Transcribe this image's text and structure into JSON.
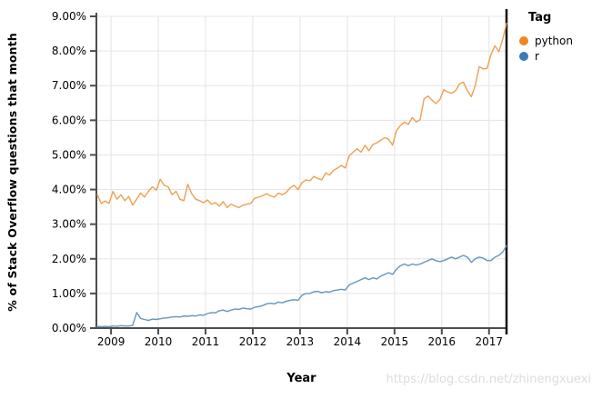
{
  "chart_data": {
    "type": "line",
    "title": "",
    "xlabel": "Year",
    "ylabel": "% of Stack Overflow questions that month",
    "legend": {
      "title": "Tag",
      "position": "right-top"
    },
    "grid": true,
    "xlim": [
      2008.69,
      2017.37
    ],
    "ylim": [
      0,
      9
    ],
    "x_ticks": [
      2009,
      2010,
      2011,
      2012,
      2013,
      2014,
      2015,
      2016,
      2017
    ],
    "y_tick_labels": [
      "0.00%",
      "1.00%",
      "2.00%",
      "3.00%",
      "4.00%",
      "5.00%",
      "6.00%",
      "7.00%",
      "8.00%",
      "9.00%"
    ],
    "x_start_month": "2008-09",
    "x_step": "1 month",
    "series": [
      {
        "name": "python",
        "dot_color": "#f28522",
        "line_color": "#efa051",
        "values": [
          3.85,
          3.6,
          3.67,
          3.6,
          3.95,
          3.72,
          3.85,
          3.68,
          3.8,
          3.55,
          3.72,
          3.9,
          3.78,
          3.95,
          4.08,
          3.98,
          4.3,
          4.12,
          4.08,
          3.85,
          3.95,
          3.72,
          3.68,
          4.15,
          3.88,
          3.72,
          3.68,
          3.62,
          3.7,
          3.58,
          3.62,
          3.52,
          3.65,
          3.48,
          3.58,
          3.52,
          3.48,
          3.55,
          3.58,
          3.6,
          3.75,
          3.78,
          3.82,
          3.88,
          3.82,
          3.78,
          3.9,
          3.85,
          3.92,
          4.05,
          4.12,
          4.0,
          4.2,
          4.28,
          4.25,
          4.38,
          4.32,
          4.28,
          4.48,
          4.42,
          4.55,
          4.62,
          4.7,
          4.62,
          4.98,
          5.08,
          5.18,
          5.08,
          5.28,
          5.12,
          5.3,
          5.35,
          5.42,
          5.5,
          5.45,
          5.28,
          5.7,
          5.85,
          5.95,
          5.88,
          6.08,
          5.95,
          6.02,
          6.62,
          6.7,
          6.58,
          6.48,
          6.6,
          6.88,
          6.82,
          6.78,
          6.85,
          7.05,
          7.1,
          6.85,
          6.68,
          7.0,
          7.55,
          7.48,
          7.5,
          7.9,
          8.15,
          7.98,
          8.35,
          8.8
        ]
      },
      {
        "name": "r",
        "dot_color": "#3b7cb8",
        "line_color": "#6596c0",
        "values": [
          0.05,
          0.04,
          0.05,
          0.04,
          0.06,
          0.05,
          0.07,
          0.06,
          0.06,
          0.08,
          0.45,
          0.28,
          0.25,
          0.22,
          0.26,
          0.25,
          0.27,
          0.29,
          0.3,
          0.32,
          0.33,
          0.32,
          0.35,
          0.34,
          0.36,
          0.35,
          0.38,
          0.37,
          0.42,
          0.45,
          0.44,
          0.5,
          0.52,
          0.48,
          0.52,
          0.55,
          0.54,
          0.58,
          0.56,
          0.55,
          0.6,
          0.62,
          0.65,
          0.7,
          0.72,
          0.7,
          0.75,
          0.73,
          0.78,
          0.8,
          0.82,
          0.8,
          0.95,
          1.0,
          1.0,
          1.05,
          1.06,
          1.02,
          1.05,
          1.04,
          1.08,
          1.1,
          1.12,
          1.1,
          1.25,
          1.3,
          1.35,
          1.4,
          1.45,
          1.4,
          1.45,
          1.42,
          1.5,
          1.55,
          1.6,
          1.55,
          1.7,
          1.8,
          1.85,
          1.8,
          1.85,
          1.82,
          1.85,
          1.9,
          1.95,
          2.0,
          1.95,
          1.92,
          1.95,
          2.0,
          2.05,
          2.0,
          2.05,
          2.1,
          2.05,
          1.9,
          2.0,
          2.05,
          2.02,
          1.95,
          1.95,
          2.05,
          2.1,
          2.2,
          2.38
        ]
      }
    ]
  },
  "watermark": {
    "text": "https://blog.csdn.net/zhinengxuexi"
  },
  "colors": {
    "grid": "#e4e4e4",
    "axis": "#4d4d4d",
    "right_border": "#111111",
    "tick_text": "#000000",
    "watermark": "#dcdcdc"
  }
}
